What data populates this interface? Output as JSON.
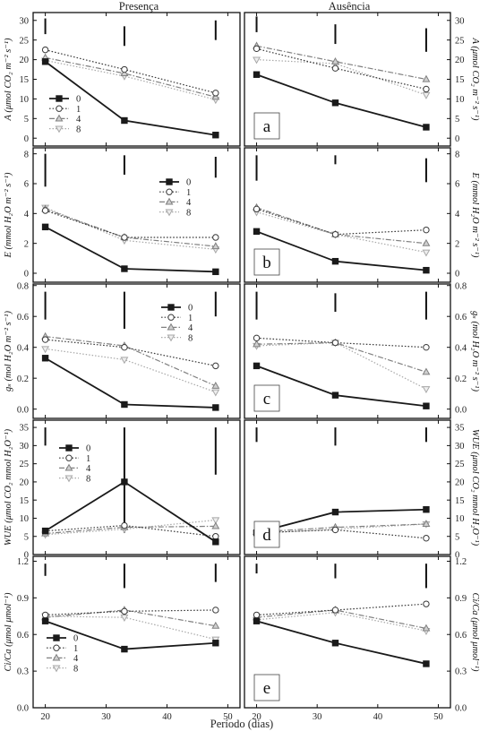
{
  "figure": {
    "column_titles": [
      "Presença",
      "Ausência"
    ],
    "xlabel": "Período (dias)",
    "xticks": [
      20,
      30,
      40,
      50
    ],
    "xlim": [
      18,
      52
    ]
  },
  "chart_data": [
    {
      "type": "line",
      "panel_letter": "a",
      "ylabel": "A (μmol CO₂ m⁻² s⁻¹)",
      "ylim": [
        -2,
        32
      ],
      "yticks": [
        0,
        5,
        10,
        15,
        20,
        25,
        30
      ],
      "legend_column": "left",
      "errorbars": {
        "left": [
          {
            "x": 20,
            "lo": 26.5,
            "hi": 30.5
          },
          {
            "x": 33,
            "lo": 23.5,
            "hi": 28.5
          },
          {
            "x": 48,
            "lo": 25,
            "hi": 30
          }
        ],
        "right": [
          {
            "x": 20,
            "lo": 27,
            "hi": 31
          },
          {
            "x": 33,
            "lo": 24,
            "hi": 29
          },
          {
            "x": 48,
            "lo": 22,
            "hi": 28
          }
        ]
      },
      "panels": [
        {
          "column": "Presença",
          "x": [
            20,
            33,
            48
          ],
          "series": [
            {
              "name": "0",
              "values": [
                19.5,
                4.5,
                0.8
              ]
            },
            {
              "name": "1",
              "values": [
                22.5,
                17.5,
                11.5
              ]
            },
            {
              "name": "4",
              "values": [
                20.5,
                16.5,
                10.5
              ]
            },
            {
              "name": "8",
              "values": [
                19.8,
                15.8,
                9.8
              ]
            }
          ]
        },
        {
          "column": "Ausência",
          "x": [
            20,
            33,
            48
          ],
          "series": [
            {
              "name": "0",
              "values": [
                16.2,
                9.0,
                2.8
              ]
            },
            {
              "name": "1",
              "values": [
                22.8,
                17.8,
                12.5
              ]
            },
            {
              "name": "4",
              "values": [
                23.5,
                19.5,
                15.0
              ]
            },
            {
              "name": "8",
              "values": [
                20.0,
                19.0,
                11.0
              ]
            }
          ]
        }
      ]
    },
    {
      "type": "line",
      "panel_letter": "b",
      "ylabel": "E (mmol H₂O m⁻² s⁻¹)",
      "ylim": [
        -0.6,
        8.4
      ],
      "yticks": [
        0,
        2,
        4,
        6,
        8
      ],
      "legend_column": "left",
      "errorbars": {
        "left": [
          {
            "x": 20,
            "lo": 5.8,
            "hi": 8.0
          },
          {
            "x": 33,
            "lo": 6.6,
            "hi": 7.9
          },
          {
            "x": 48,
            "lo": 6.4,
            "hi": 7.8
          }
        ],
        "right": [
          {
            "x": 20,
            "lo": 6.2,
            "hi": 7.9
          },
          {
            "x": 33,
            "lo": 7.3,
            "hi": 7.9
          },
          {
            "x": 48,
            "lo": 6.1,
            "hi": 7.7
          }
        ]
      },
      "panels": [
        {
          "column": "Presença",
          "x": [
            20,
            33,
            48
          ],
          "series": [
            {
              "name": "0",
              "values": [
                3.1,
                0.3,
                0.1
              ]
            },
            {
              "name": "1",
              "values": [
                4.2,
                2.4,
                2.4
              ]
            },
            {
              "name": "4",
              "values": [
                4.3,
                2.4,
                1.8
              ]
            },
            {
              "name": "8",
              "values": [
                4.4,
                2.2,
                1.6
              ]
            }
          ]
        },
        {
          "column": "Ausência",
          "x": [
            20,
            33,
            48
          ],
          "series": [
            {
              "name": "0",
              "values": [
                2.8,
                0.8,
                0.2
              ]
            },
            {
              "name": "1",
              "values": [
                4.3,
                2.6,
                2.9
              ]
            },
            {
              "name": "4",
              "values": [
                4.4,
                2.6,
                2.0
              ]
            },
            {
              "name": "8",
              "values": [
                4.1,
                2.6,
                1.4
              ]
            }
          ]
        }
      ]
    },
    {
      "type": "line",
      "panel_letter": "c",
      "ylabel": "gₛ (mol H₂O m⁻² s⁻¹)",
      "ylim": [
        -0.06,
        0.81
      ],
      "yticks": [
        0.0,
        0.2,
        0.4,
        0.6,
        0.8
      ],
      "legend_column": "left",
      "errorbars": {
        "left": [
          {
            "x": 20,
            "lo": 0.58,
            "hi": 0.76
          },
          {
            "x": 33,
            "lo": 0.52,
            "hi": 0.76
          },
          {
            "x": 48,
            "lo": 0.6,
            "hi": 0.76
          }
        ],
        "right": [
          {
            "x": 20,
            "lo": 0.58,
            "hi": 0.76
          },
          {
            "x": 33,
            "lo": 0.63,
            "hi": 0.75
          },
          {
            "x": 48,
            "lo": 0.58,
            "hi": 0.76
          }
        ]
      },
      "panels": [
        {
          "column": "Presença",
          "x": [
            20,
            33,
            48
          ],
          "series": [
            {
              "name": "0",
              "values": [
                0.33,
                0.03,
                0.01
              ]
            },
            {
              "name": "1",
              "values": [
                0.45,
                0.4,
                0.28
              ]
            },
            {
              "name": "4",
              "values": [
                0.47,
                0.41,
                0.15
              ]
            },
            {
              "name": "8",
              "values": [
                0.39,
                0.32,
                0.11
              ]
            }
          ]
        },
        {
          "column": "Ausência",
          "x": [
            20,
            33,
            48
          ],
          "series": [
            {
              "name": "0",
              "values": [
                0.28,
                0.09,
                0.02
              ]
            },
            {
              "name": "1",
              "values": [
                0.46,
                0.43,
                0.4
              ]
            },
            {
              "name": "4",
              "values": [
                0.42,
                0.43,
                0.24
              ]
            },
            {
              "name": "8",
              "values": [
                0.41,
                0.43,
                0.13
              ]
            }
          ]
        }
      ]
    },
    {
      "type": "line",
      "panel_letter": "d",
      "ylabel": "WUE (μmol CO₂ mmol H₂O⁻¹)",
      "ylim": [
        0,
        37
      ],
      "yticks": [
        0,
        5,
        10,
        15,
        20,
        25,
        30,
        35
      ],
      "legend_column": "left",
      "errorbars": {
        "left": [
          {
            "x": 20,
            "lo": 30,
            "hi": 35
          },
          {
            "x": 33,
            "lo": 6,
            "hi": 35
          },
          {
            "x": 48,
            "lo": 22,
            "hi": 35
          }
        ],
        "right": [
          {
            "x": 20,
            "lo": 31,
            "hi": 35
          },
          {
            "x": 33,
            "lo": 30,
            "hi": 35
          },
          {
            "x": 48,
            "lo": 31,
            "hi": 35
          }
        ]
      },
      "panels": [
        {
          "column": "Presença",
          "x": [
            20,
            33,
            48
          ],
          "series": [
            {
              "name": "0",
              "values": [
                6.5,
                20.0,
                3.5
              ]
            },
            {
              "name": "1",
              "values": [
                6.5,
                8.0,
                5.0
              ]
            },
            {
              "name": "4",
              "values": [
                5.8,
                7.5,
                7.8
              ]
            },
            {
              "name": "8",
              "values": [
                5.5,
                7.0,
                9.5
              ]
            }
          ]
        },
        {
          "column": "Ausência",
          "x": [
            20,
            33,
            48
          ],
          "series": [
            {
              "name": "0",
              "values": [
                6.0,
                11.7,
                12.4
              ]
            },
            {
              "name": "1",
              "values": [
                6.0,
                6.8,
                4.5
              ]
            },
            {
              "name": "4",
              "values": [
                6.2,
                7.5,
                8.4
              ]
            },
            {
              "name": "8",
              "values": [
                5.8,
                7.0,
                8.4
              ]
            }
          ]
        }
      ]
    },
    {
      "type": "line",
      "panel_letter": "e",
      "ylabel": "Ci/Ca (μmol μmol⁻¹)",
      "ylim": [
        0,
        1.24
      ],
      "yticks": [
        0.0,
        0.3,
        0.6,
        0.9,
        1.2
      ],
      "legend_column": "left",
      "errorbars": {
        "left": [
          {
            "x": 20,
            "lo": 1.08,
            "hi": 1.18
          },
          {
            "x": 33,
            "lo": 0.98,
            "hi": 1.18
          },
          {
            "x": 48,
            "lo": 1.03,
            "hi": 1.18
          }
        ],
        "right": [
          {
            "x": 20,
            "lo": 1.1,
            "hi": 1.18
          },
          {
            "x": 33,
            "lo": 1.06,
            "hi": 1.18
          },
          {
            "x": 48,
            "lo": 0.98,
            "hi": 1.18
          }
        ]
      },
      "panels": [
        {
          "column": "Presença",
          "x": [
            20,
            33,
            48
          ],
          "series": [
            {
              "name": "0",
              "values": [
                0.71,
                0.48,
                0.53
              ]
            },
            {
              "name": "1",
              "values": [
                0.76,
                0.79,
                0.8
              ]
            },
            {
              "name": "4",
              "values": [
                0.74,
                0.8,
                0.67
              ]
            },
            {
              "name": "8",
              "values": [
                0.75,
                0.74,
                0.56
              ]
            }
          ]
        },
        {
          "column": "Ausência",
          "x": [
            20,
            33,
            48
          ],
          "series": [
            {
              "name": "0",
              "values": [
                0.71,
                0.53,
                0.36
              ]
            },
            {
              "name": "1",
              "values": [
                0.76,
                0.8,
                0.85
              ]
            },
            {
              "name": "4",
              "values": [
                0.74,
                0.8,
                0.65
              ]
            },
            {
              "name": "8",
              "values": [
                0.72,
                0.78,
                0.63
              ]
            }
          ]
        }
      ]
    }
  ]
}
